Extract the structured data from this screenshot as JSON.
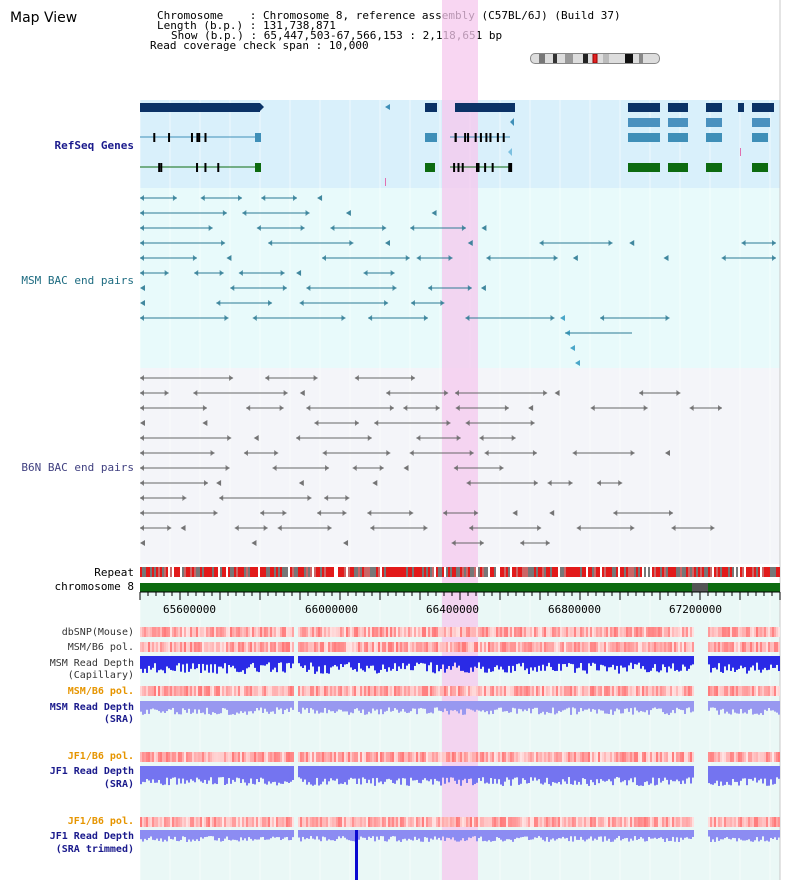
{
  "page": {
    "title": "Map View"
  },
  "info": {
    "chromosome_key": "Chromosome",
    "chromosome_val": "Chromosome 8, reference assembly (C57BL/6J) (Build 37)",
    "length_key": "Length (b.p.)",
    "length_val": "131,738,871",
    "show_key": "Show (b.p.)",
    "show_val": "65,447,503-67,566,153 : 2,118,651 bp",
    "coverage_key": "Read coverage check span",
    "coverage_val": "10,000"
  },
  "tracks": {
    "refseq": "RefSeq Genes",
    "msm_bac": "MSM BAC end pairs",
    "b6n_bac": "B6N BAC end pairs",
    "repeat": "Repeat",
    "chromosome": "chromosome 8"
  },
  "axis": {
    "ticks": [
      "65600000",
      "66000000",
      "66400000",
      "66800000",
      "67200000"
    ]
  },
  "lower_tracks": {
    "dbsnp": "dbSNP(Mouse)",
    "msm_pol_1": "MSM/B6 pol.",
    "msm_depth_cap_1": "MSM Read Depth",
    "msm_depth_cap_2": "(Capillary)",
    "msm_pol_2": "MSM/B6 pol.",
    "msm_depth_sra_1": "MSM Read Depth",
    "msm_depth_sra_2": "(SRA)",
    "jf1_pol_1": "JF1/B6 pol.",
    "jf1_depth_1": "JF1 Read Depth",
    "jf1_depth_2": "(SRA)",
    "jf1_pol_2": "JF1/B6 pol.",
    "jf1_trim_1": "JF1 Read Depth",
    "jf1_trim_2": "(SRA trimmed)"
  },
  "colors": {
    "label_blue": "#1a1a8c",
    "label_orange": "#e69500",
    "highlight": "#f5d0ef",
    "refseq_bg": "#d9f0fb",
    "msm_bg": "#e6f9fa",
    "b6n_bg": "#f4f4f8"
  }
}
